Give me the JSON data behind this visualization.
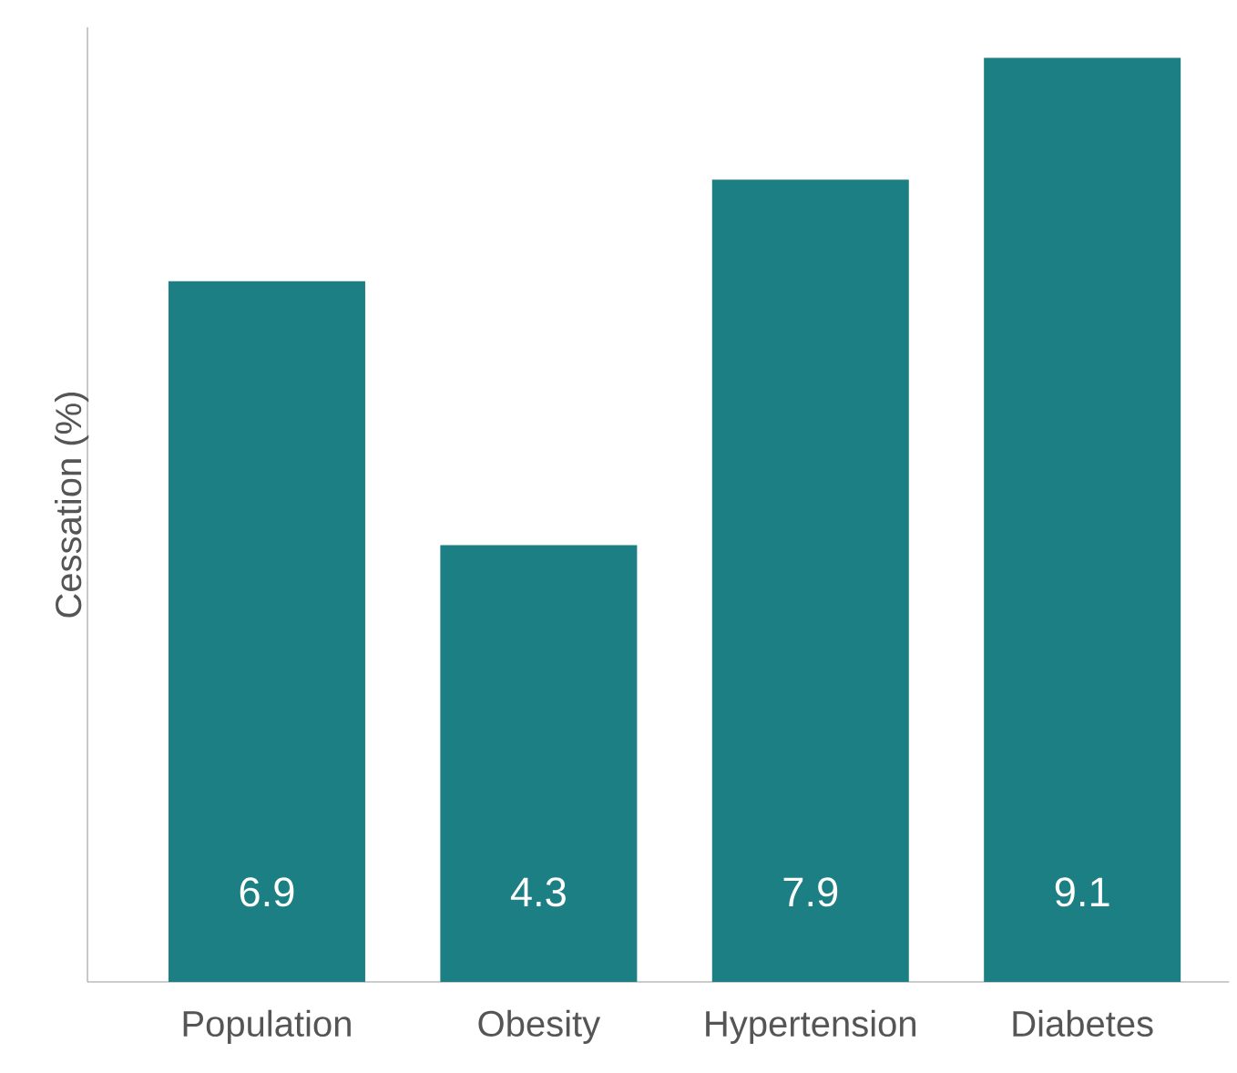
{
  "chart_data": {
    "type": "bar",
    "ylabel": "Cessation (%)",
    "categories": [
      "Population",
      "Obesity",
      "Hypertension",
      "Diabetes"
    ],
    "values": [
      6.9,
      4.3,
      7.9,
      9.1
    ],
    "color": "#1b7f83",
    "ylim": [
      0,
      9.4
    ],
    "data_labels": true
  }
}
